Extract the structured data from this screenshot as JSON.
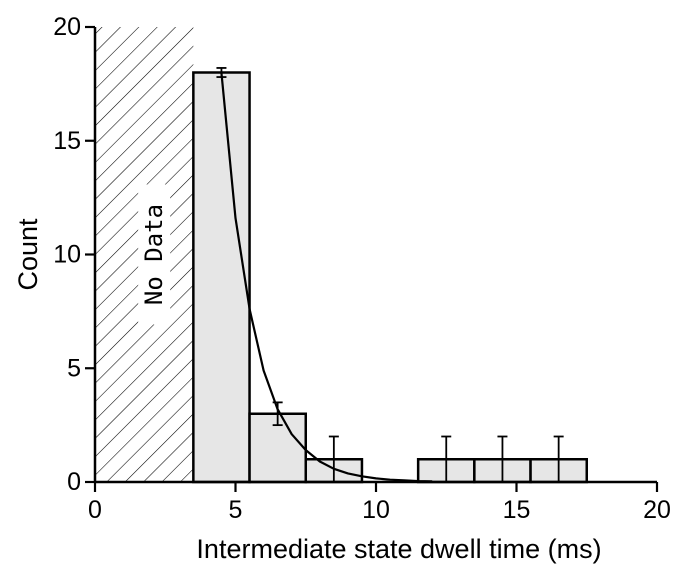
{
  "chart_data": {
    "type": "bar",
    "title": "",
    "xlabel": "Intermediate state dwell time  (ms)",
    "ylabel": "Count",
    "xlim": [
      0,
      20
    ],
    "ylim": [
      0,
      20
    ],
    "xticks": [
      0,
      5,
      10,
      15,
      20
    ],
    "yticks": [
      0,
      5,
      10,
      15,
      20
    ],
    "xtick_labels": [
      "0",
      "5",
      "10",
      "15",
      "20"
    ],
    "ytick_labels": [
      "0",
      "5",
      "10",
      "15",
      "20"
    ],
    "grid": false,
    "bin_width": 2,
    "bins": [
      {
        "center": 4.5,
        "value": 18,
        "error": 0.2
      },
      {
        "center": 6.5,
        "value": 3,
        "error": 0.5
      },
      {
        "center": 8.5,
        "value": 1,
        "error": 1
      },
      {
        "center": 10.5,
        "value": 0,
        "error": 0
      },
      {
        "center": 12.5,
        "value": 1,
        "error": 1
      },
      {
        "center": 14.5,
        "value": 1,
        "error": 1
      },
      {
        "center": 16.5,
        "value": 1,
        "error": 1
      }
    ],
    "no_data_region": {
      "x": [
        0,
        3.5
      ],
      "label": "No Data"
    },
    "fit_curve": {
      "type": "exponential decay",
      "x": [
        4.5,
        5.0,
        5.5,
        6.0,
        6.5,
        7.0,
        7.5,
        8.0,
        8.5,
        9.0,
        9.5,
        10.0,
        10.5,
        11.0,
        11.5,
        12.0
      ],
      "y": [
        18,
        11.6,
        7.6,
        4.9,
        3.2,
        2.1,
        1.4,
        0.9,
        0.58,
        0.38,
        0.25,
        0.16,
        0.1,
        0.07,
        0.04,
        0.03
      ]
    },
    "colors": {
      "bar_fill": "#e6e6e6",
      "stroke": "#000000"
    }
  }
}
